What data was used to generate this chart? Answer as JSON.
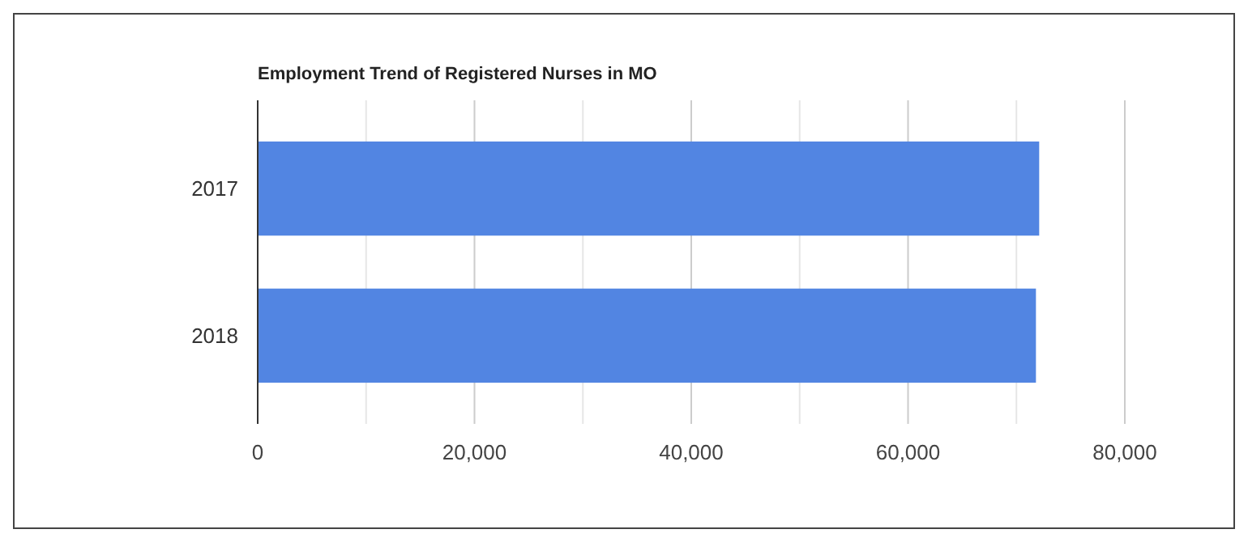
{
  "chart_data": {
    "type": "bar",
    "orientation": "horizontal",
    "title": "Employment Trend of Registered Nurses in MO",
    "categories": [
      "2017",
      "2018"
    ],
    "values": [
      72100,
      71800
    ],
    "color": "#5285e2",
    "xlim": [
      0,
      80000
    ],
    "xticks": [
      0,
      {
        "value": 10000,
        "label": null
      },
      "20,000",
      {
        "value": 30000,
        "label": null
      },
      {
        "value": 40000,
        "label": "40,000"
      },
      {
        "value": 50000,
        "label": null
      },
      {
        "value": 60000,
        "label": "60,000"
      },
      {
        "value": 70000,
        "label": null
      },
      {
        "value": 80000,
        "label": "80,000"
      }
    ],
    "grid": "x"
  }
}
